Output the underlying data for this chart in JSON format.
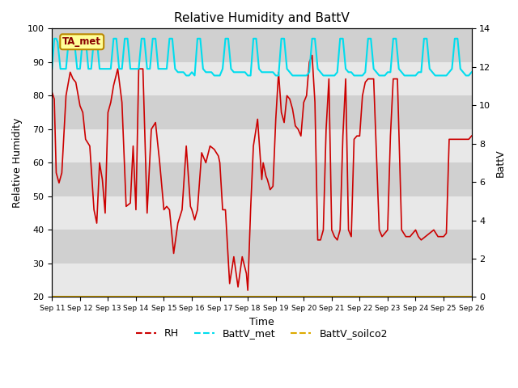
{
  "title": "Relative Humidity and BattV",
  "xlabel": "Time",
  "ylabel_left": "Relative Humidity",
  "ylabel_right": "BattV",
  "ylim_left": [
    20,
    100
  ],
  "ylim_right": [
    0,
    14
  ],
  "bg_color": "#d8d8d8",
  "fig_color": "#ffffff",
  "annotation_text": "TA_met",
  "annotation_bg": "#ffff99",
  "annotation_border": "#bb8800",
  "legend_items": [
    {
      "label": "RH",
      "color": "#cc0000",
      "lw": 1.5
    },
    {
      "label": "BattV_met",
      "color": "#00ddee",
      "lw": 1.5
    },
    {
      "label": "BattV_soilco2",
      "color": "#ddaa00",
      "lw": 1.5
    }
  ],
  "x_ticks": [
    "Sep 11",
    "Sep 12",
    "Sep 13",
    "Sep 14",
    "Sep 15",
    "Sep 16",
    "Sep 17",
    "Sep 18",
    "Sep 19",
    "Sep 20",
    "Sep 21",
    "Sep 22",
    "Sep 23",
    "Sep 24",
    "Sep 25",
    "Sep 26"
  ],
  "rh_color": "#cc0000",
  "battv_met_color": "#00ddee",
  "battv_soilco2_color": "#ddaa00",
  "rh_lw": 1.2,
  "battv_met_lw": 1.5,
  "battv_soilco2_lw": 1.5,
  "band_colors": [
    "#d0d0d0",
    "#c0c0c0"
  ],
  "band_yticks": [
    20,
    30,
    40,
    50,
    60,
    70,
    80,
    90,
    100
  ],
  "right_yticks": [
    0,
    2,
    4,
    6,
    8,
    10,
    12,
    14
  ],
  "rh_x": [
    0.0,
    0.08,
    0.15,
    0.25,
    0.35,
    0.5,
    0.65,
    0.75,
    0.85,
    1.0,
    1.1,
    1.2,
    1.35,
    1.5,
    1.6,
    1.7,
    1.8,
    1.9,
    2.0,
    2.1,
    2.2,
    2.35,
    2.5,
    2.65,
    2.8,
    2.9,
    3.0,
    3.1,
    3.25,
    3.4,
    3.55,
    3.7,
    3.85,
    4.0,
    4.1,
    4.2,
    4.35,
    4.5,
    4.65,
    4.8,
    4.95,
    5.0,
    5.1,
    5.2,
    5.35,
    5.5,
    5.65,
    5.8,
    5.95,
    6.0,
    6.1,
    6.2,
    6.35,
    6.5,
    6.65,
    6.8,
    6.95,
    7.0,
    7.1,
    7.2,
    7.35,
    7.5,
    7.55,
    7.6,
    7.65,
    7.7,
    7.8,
    7.9,
    8.0,
    8.1,
    8.2,
    8.3,
    8.4,
    8.5,
    8.6,
    8.7,
    8.8,
    8.9,
    9.0,
    9.1,
    9.2,
    9.3,
    9.4,
    9.5,
    9.6,
    9.7,
    9.8,
    9.9,
    10.0,
    10.1,
    10.2,
    10.3,
    10.4,
    10.5,
    10.6,
    10.7,
    10.8,
    10.9,
    11.0,
    11.1,
    11.2,
    11.3,
    11.5,
    11.7,
    11.8,
    11.9,
    12.0,
    12.1,
    12.2,
    12.35,
    12.5,
    12.65,
    12.8,
    12.9,
    13.0,
    13.1,
    13.2,
    13.35,
    13.5,
    13.65,
    13.8,
    13.9,
    14.0,
    14.1,
    14.2,
    14.35,
    14.5,
    14.65,
    14.8,
    14.9,
    15.0
  ],
  "rh_y": [
    81,
    79,
    57,
    54,
    57,
    80,
    87,
    85,
    84,
    77,
    75,
    67,
    65,
    46,
    42,
    60,
    55,
    45,
    75,
    78,
    83,
    88,
    78,
    47,
    48,
    65,
    46,
    88,
    88,
    45,
    70,
    72,
    60,
    46,
    47,
    46,
    33,
    42,
    46,
    65,
    47,
    46,
    43,
    46,
    63,
    60,
    65,
    64,
    62,
    60,
    46,
    46,
    24,
    32,
    23,
    32,
    27,
    22,
    46,
    65,
    73,
    55,
    60,
    58,
    56,
    55,
    52,
    53,
    73,
    87,
    75,
    72,
    80,
    79,
    76,
    71,
    70,
    68,
    78,
    80,
    90,
    92,
    78,
    37,
    37,
    40,
    70,
    85,
    40,
    38,
    37,
    40,
    68,
    85,
    40,
    38,
    67,
    68,
    68,
    80,
    84,
    85,
    85,
    40,
    38,
    39,
    40,
    68,
    85,
    85,
    40,
    38,
    38,
    39,
    40,
    38,
    37,
    38,
    39,
    40,
    38,
    38,
    38,
    39,
    67,
    67,
    67,
    67,
    67,
    67,
    68
  ],
  "battv_met_x": [
    0.0,
    0.08,
    0.15,
    0.2,
    0.3,
    0.4,
    0.5,
    0.6,
    0.7,
    0.8,
    0.9,
    1.0,
    1.1,
    1.2,
    1.3,
    1.4,
    1.5,
    1.6,
    1.7,
    1.8,
    1.9,
    2.0,
    2.1,
    2.2,
    2.3,
    2.4,
    2.5,
    2.6,
    2.7,
    2.8,
    2.9,
    3.0,
    3.1,
    3.2,
    3.3,
    3.4,
    3.5,
    3.6,
    3.7,
    3.8,
    3.9,
    4.0,
    4.1,
    4.2,
    4.3,
    4.4,
    4.5,
    4.6,
    4.7,
    4.8,
    4.9,
    5.0,
    5.1,
    5.2,
    5.3,
    5.4,
    5.5,
    5.6,
    5.7,
    5.8,
    5.9,
    6.0,
    6.1,
    6.2,
    6.3,
    6.4,
    6.5,
    6.6,
    6.7,
    6.8,
    6.9,
    7.0,
    7.1,
    7.2,
    7.3,
    7.4,
    7.5,
    7.6,
    7.7,
    7.8,
    7.9,
    8.0,
    8.1,
    8.2,
    8.3,
    8.4,
    8.5,
    8.6,
    8.7,
    8.8,
    8.9,
    9.0,
    9.1,
    9.2,
    9.3,
    9.4,
    9.5,
    9.6,
    9.7,
    9.8,
    9.9,
    10.0,
    10.1,
    10.2,
    10.3,
    10.4,
    10.5,
    10.6,
    10.7,
    10.8,
    10.9,
    11.0,
    11.1,
    11.2,
    11.3,
    11.4,
    11.5,
    11.6,
    11.7,
    11.8,
    11.9,
    12.0,
    12.1,
    12.2,
    12.3,
    12.4,
    12.5,
    12.6,
    12.7,
    12.8,
    12.9,
    13.0,
    13.1,
    13.2,
    13.3,
    13.4,
    13.5,
    13.6,
    13.7,
    13.8,
    13.9,
    14.0,
    14.1,
    14.2,
    14.3,
    14.4,
    14.5,
    14.6,
    14.7,
    14.8,
    14.9,
    15.0
  ],
  "battv_met_y": [
    88,
    97,
    97,
    96,
    88,
    88,
    88,
    97,
    97,
    96,
    88,
    88,
    97,
    97,
    88,
    88,
    97,
    97,
    88,
    88,
    88,
    88,
    88,
    97,
    97,
    88,
    88,
    97,
    97,
    88,
    88,
    88,
    88,
    97,
    97,
    88,
    88,
    97,
    97,
    88,
    88,
    88,
    88,
    97,
    97,
    88,
    87,
    87,
    87,
    86,
    86,
    87,
    86,
    97,
    97,
    88,
    87,
    87,
    87,
    86,
    86,
    86,
    88,
    97,
    97,
    88,
    87,
    87,
    87,
    87,
    87,
    86,
    86,
    97,
    97,
    88,
    87,
    87,
    87,
    87,
    87,
    86,
    86,
    97,
    97,
    88,
    87,
    86,
    86,
    86,
    86,
    86,
    86,
    87,
    97,
    97,
    88,
    87,
    86,
    86,
    86,
    86,
    86,
    87,
    97,
    97,
    88,
    87,
    87,
    86,
    86,
    86,
    86,
    87,
    97,
    97,
    88,
    87,
    86,
    86,
    86,
    87,
    87,
    97,
    97,
    88,
    87,
    86,
    86,
    86,
    86,
    86,
    87,
    87,
    97,
    97,
    88,
    87,
    86,
    86,
    86,
    86,
    86,
    87,
    88,
    97,
    97,
    88,
    87,
    86,
    86,
    87
  ],
  "xlim": [
    0,
    15
  ]
}
